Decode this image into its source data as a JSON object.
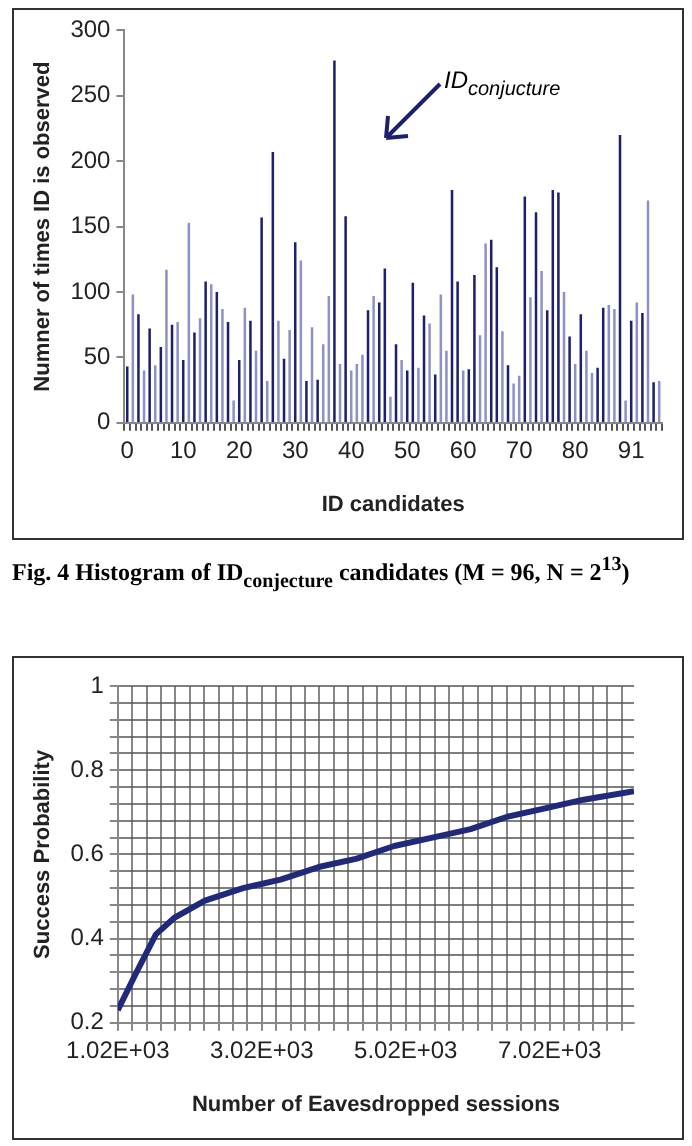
{
  "chart_data": [
    {
      "type": "bar",
      "xlabel": "ID candidates",
      "ylabel": "Numner of times ID is observed",
      "categories": [
        "0",
        null,
        null,
        null,
        null,
        null,
        null,
        null,
        null,
        null,
        "10",
        null,
        null,
        null,
        null,
        null,
        null,
        null,
        null,
        null,
        "20",
        null,
        null,
        null,
        null,
        null,
        null,
        null,
        null,
        null,
        "30",
        null,
        null,
        null,
        null,
        null,
        null,
        null,
        null,
        null,
        "40",
        null,
        null,
        null,
        null,
        null,
        null,
        null,
        null,
        null,
        "50",
        null,
        null,
        null,
        null,
        null,
        null,
        null,
        null,
        null,
        "60",
        null,
        null,
        null,
        null,
        null,
        null,
        null,
        null,
        null,
        "70",
        null,
        null,
        null,
        null,
        null,
        null,
        null,
        null,
        null,
        "80",
        null,
        null,
        null,
        null,
        null,
        null,
        null,
        null,
        null,
        "91",
        null,
        null,
        null,
        null,
        null
      ],
      "values": [
        43,
        98,
        83,
        40,
        72,
        44,
        58,
        117,
        75,
        77,
        48,
        153,
        69,
        80,
        108,
        106,
        100,
        87,
        77,
        17,
        48,
        88,
        78,
        55,
        157,
        32,
        207,
        78,
        49,
        71,
        138,
        124,
        32,
        73,
        33,
        60,
        97,
        277,
        45,
        158,
        40,
        45,
        52,
        86,
        97,
        92,
        118,
        20,
        60,
        48,
        40,
        107,
        42,
        82,
        76,
        37,
        98,
        55,
        178,
        108,
        40,
        41,
        113,
        67,
        137,
        140,
        119,
        70,
        44,
        30,
        36,
        173,
        96,
        161,
        116,
        86,
        178,
        176,
        100,
        66,
        45,
        83,
        55,
        38,
        42,
        88,
        90,
        87,
        220,
        17,
        78,
        92,
        84,
        170,
        31,
        32
      ],
      "colors": [
        "#1f1f70",
        "#9090c8",
        "#1f1f70",
        "#9090c8",
        "#1f1f70",
        "#9090c8",
        "#1f1f70",
        "#9090c8",
        "#1f1f70",
        "#9090c8",
        "#1f1f70",
        "#9090c8",
        "#1f1f70",
        "#9090c8",
        "#1f1f70",
        "#9090c8",
        "#1f1f70",
        "#9090c8",
        "#1f1f70",
        "#9090c8",
        "#1f1f70",
        "#9090c8",
        "#1f1f70",
        "#9090c8",
        "#1f1f70",
        "#9090c8",
        "#1f1f70",
        "#9090c8",
        "#1f1f70",
        "#9090c8",
        "#1f1f70",
        "#9090c8",
        "#1f1f70",
        "#9090c8",
        "#1f1f70",
        "#9090c8",
        "#9090c8",
        "#1f1f70",
        "#9090c8",
        "#1f1f70",
        "#9090c8",
        "#9090c8",
        "#9090c8",
        "#1f1f70",
        "#9090c8",
        "#1f1f70",
        "#1f1f70",
        "#9090c8",
        "#1f1f70",
        "#9090c8",
        "#1f1f70",
        "#1f1f70",
        "#9090c8",
        "#1f1f70",
        "#9090c8",
        "#1f1f70",
        "#9090c8",
        "#9090c8",
        "#1f1f70",
        "#1f1f70",
        "#9090c8",
        "#1f1f70",
        "#1f1f70",
        "#9090c8",
        "#9090c8",
        "#1f1f70",
        "#1f1f70",
        "#9090c8",
        "#1f1f70",
        "#9090c8",
        "#9090c8",
        "#1f1f70",
        "#9090c8",
        "#1f1f70",
        "#9090c8",
        "#1f1f70",
        "#1f1f70",
        "#1f1f70",
        "#9090c8",
        "#1f1f70",
        "#9090c8",
        "#1f1f70",
        "#9090c8",
        "#9090c8",
        "#1f1f70",
        "#1f1f70",
        "#9090c8",
        "#9090c8",
        "#1f1f70",
        "#9090c8",
        "#1f1f70",
        "#9090c8",
        "#1f1f70",
        "#9090c8",
        "#1f1f70",
        "#9090c8"
      ],
      "ylim": [
        0,
        300
      ],
      "yticks": [
        0,
        50,
        100,
        150,
        200,
        250,
        300
      ],
      "grid": false,
      "legend": false,
      "annotations": [
        "ID$_{conjucture}$",
        "Fig. 4    Histogram of ID$_{conjecture}$ candidates (M = 96, N = 2$^{13}$)"
      ]
    },
    {
      "type": "line",
      "xlabel": "Number of Eavesdropped sessions",
      "ylabel": "Success Probability",
      "x": [
        1020,
        1280,
        1550,
        1810,
        2230,
        2760,
        3280,
        3810,
        4340,
        4860,
        5390,
        5920,
        6440,
        6970,
        7490,
        8190
      ],
      "series": [
        {
          "color": "#1f2a7a",
          "values": [
            0.23,
            0.32,
            0.41,
            0.45,
            0.49,
            0.52,
            0.54,
            0.57,
            0.59,
            0.62,
            0.64,
            0.66,
            0.69,
            0.71,
            0.73,
            0.75
          ]
        }
      ],
      "xlim": [
        1020,
        8190
      ],
      "xticks": [
        {
          "value": 1020,
          "label": "1.02E+03"
        },
        {
          "value": 1220,
          "label": null
        },
        {
          "value": 1420,
          "label": null
        },
        {
          "value": 1620,
          "label": null
        },
        {
          "value": 1820,
          "label": null
        },
        {
          "value": 2020,
          "label": null
        },
        {
          "value": 2220,
          "label": null
        },
        {
          "value": 2420,
          "label": null
        },
        {
          "value": 2620,
          "label": null
        },
        {
          "value": 2820,
          "label": null
        },
        {
          "value": 3020,
          "label": "3.02E+03"
        },
        {
          "value": 3220,
          "label": null
        },
        {
          "value": 3420,
          "label": null
        },
        {
          "value": 3620,
          "label": null
        },
        {
          "value": 3820,
          "label": null
        },
        {
          "value": 4020,
          "label": null
        },
        {
          "value": 4220,
          "label": null
        },
        {
          "value": 4420,
          "label": null
        },
        {
          "value": 4620,
          "label": null
        },
        {
          "value": 4820,
          "label": null
        },
        {
          "value": 5020,
          "label": "5.02E+03"
        },
        {
          "value": 5220,
          "label": null
        },
        {
          "value": 5420,
          "label": null
        },
        {
          "value": 5620,
          "label": null
        },
        {
          "value": 5820,
          "label": null
        },
        {
          "value": 6020,
          "label": null
        },
        {
          "value": 6220,
          "label": null
        },
        {
          "value": 6420,
          "label": null
        },
        {
          "value": 6620,
          "label": null
        },
        {
          "value": 6820,
          "label": null
        },
        {
          "value": 7020,
          "label": "7.02E+03"
        },
        {
          "value": 7220,
          "label": null
        },
        {
          "value": 7420,
          "label": null
        },
        {
          "value": 7620,
          "label": null
        },
        {
          "value": 7820,
          "label": null
        },
        {
          "value": 8020,
          "label": null
        }
      ],
      "ylim": [
        0.2,
        1
      ],
      "yticks": [
        0.2,
        {
          "value": 0.24,
          "label": null
        },
        {
          "value": 0.28,
          "label": null
        },
        {
          "value": 0.32,
          "label": null
        },
        {
          "value": 0.36,
          "label": null
        },
        0.4,
        {
          "value": 0.44,
          "label": null
        },
        {
          "value": 0.48,
          "label": null
        },
        {
          "value": 0.52,
          "label": null
        },
        {
          "value": 0.56,
          "label": null
        },
        0.6,
        {
          "value": 0.64,
          "label": null
        },
        {
          "value": 0.68,
          "label": null
        },
        {
          "value": 0.72,
          "label": null
        },
        {
          "value": 0.76,
          "label": null
        },
        0.8,
        {
          "value": 0.84,
          "label": null
        },
        {
          "value": 0.88,
          "label": null
        },
        {
          "value": 0.92,
          "label": null
        },
        {
          "value": 0.96,
          "label": null
        },
        1
      ],
      "grid": true,
      "legend": false,
      "marker": "none",
      "line_style": "solid"
    }
  ]
}
